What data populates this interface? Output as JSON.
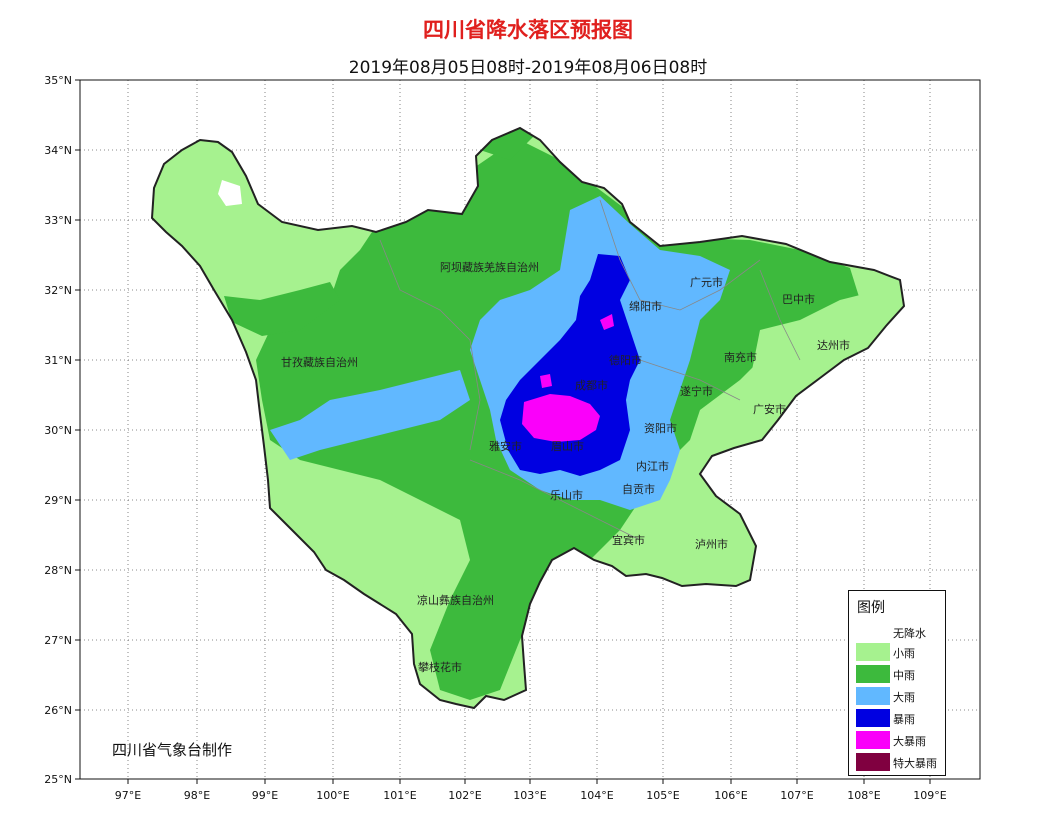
{
  "title": "四川省降水落区预报图",
  "subtitle": "2019年08月05日08时-2019年08月06日08时",
  "credit": "四川省气象台制作",
  "axes": {
    "lat_labels": [
      "35°N",
      "34°N",
      "33°N",
      "32°N",
      "31°N",
      "30°N",
      "29°N",
      "28°N",
      "27°N",
      "26°N",
      "25°N"
    ],
    "lon_labels": [
      "97°E",
      "98°E",
      "99°E",
      "100°E",
      "101°E",
      "102°E",
      "103°E",
      "104°E",
      "105°E",
      "106°E",
      "107°E",
      "108°E",
      "109°E"
    ]
  },
  "regions": [
    {
      "name": "阿坝藏族羌族自治州"
    },
    {
      "name": "甘孜藏族自治州"
    },
    {
      "name": "凉山彝族自治州"
    },
    {
      "name": "攀枝花市"
    },
    {
      "name": "广元市"
    },
    {
      "name": "巴中市"
    },
    {
      "name": "绵阳市"
    },
    {
      "name": "达州市"
    },
    {
      "name": "德阳市"
    },
    {
      "name": "南充市"
    },
    {
      "name": "成都市"
    },
    {
      "name": "遂宁市"
    },
    {
      "name": "广安市"
    },
    {
      "name": "雅安市"
    },
    {
      "name": "眉山市"
    },
    {
      "name": "资阳市"
    },
    {
      "name": "内江市"
    },
    {
      "name": "乐山市"
    },
    {
      "name": "自贡市"
    },
    {
      "name": "宜宾市"
    },
    {
      "name": "泸州市"
    }
  ],
  "legend": {
    "title": "图例",
    "items": [
      {
        "label": "无降水",
        "color": "#ffffff"
      },
      {
        "label": "小雨",
        "color": "#a6f28f"
      },
      {
        "label": "中雨",
        "color": "#3dba3d"
      },
      {
        "label": "大雨",
        "color": "#61b8ff"
      },
      {
        "label": "暴雨",
        "color": "#0000e1"
      },
      {
        "label": "大暴雨",
        "color": "#fa00fa"
      },
      {
        "label": "特大暴雨",
        "color": "#800040"
      }
    ]
  }
}
